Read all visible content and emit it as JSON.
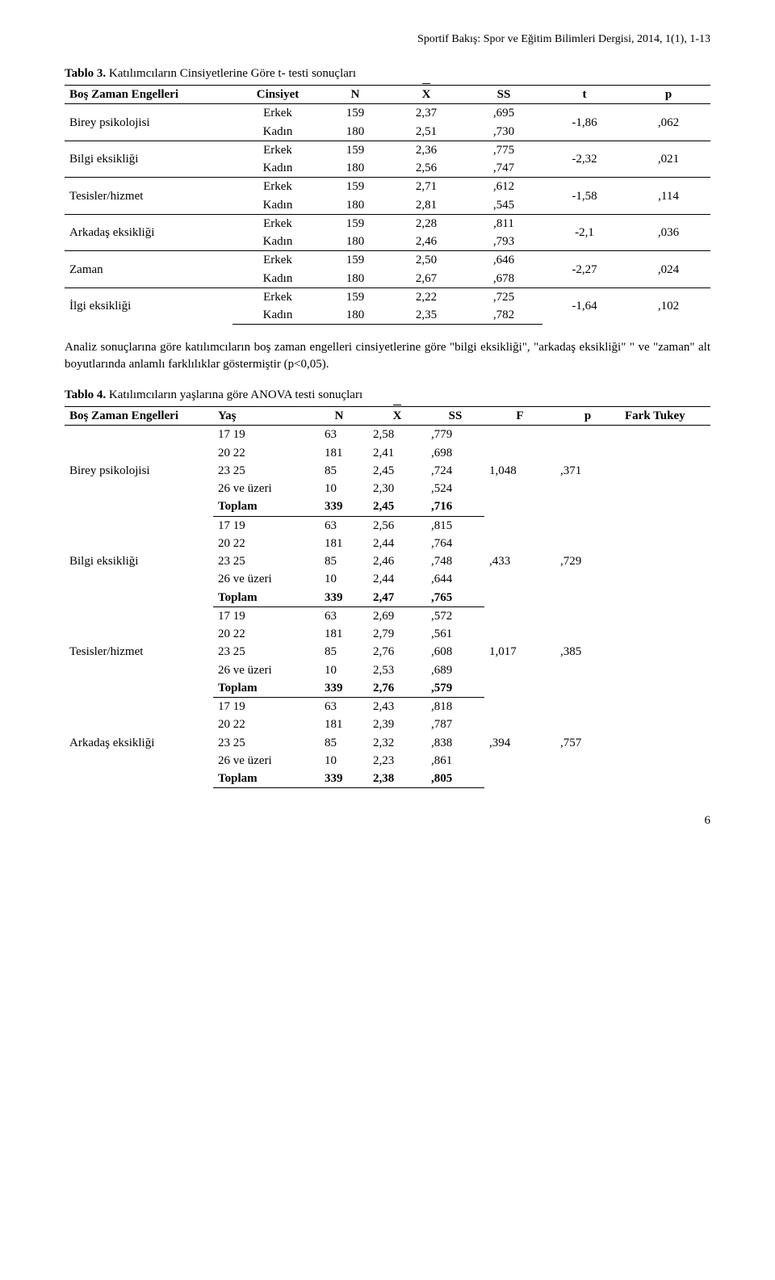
{
  "journal_header": "Sportif Bakış: Spor ve Eğitim Bilimleri Dergisi, 2014, 1(1), 1-13",
  "table3": {
    "caption_label": "Tablo 3.",
    "caption_text": " Katılımcıların Cinsiyetlerine Göre t- testi sonuçları",
    "headers": {
      "engel": "Boş Zaman Engelleri",
      "cinsiyet": "Cinsiyet",
      "n": "N",
      "x": "X",
      "ss": "SS",
      "t": "t",
      "p": "p"
    },
    "groups": [
      {
        "label": "Birey psikolojisi",
        "rows": [
          {
            "g": "Erkek",
            "n": "159",
            "x": "2,37",
            "ss": ",695"
          },
          {
            "g": "Kadın",
            "n": "180",
            "x": "2,51",
            "ss": ",730"
          }
        ],
        "t": "-1,86",
        "p": ",062"
      },
      {
        "label": "Bilgi eksikliği",
        "rows": [
          {
            "g": "Erkek",
            "n": "159",
            "x": "2,36",
            "ss": ",775"
          },
          {
            "g": "Kadın",
            "n": "180",
            "x": "2,56",
            "ss": ",747"
          }
        ],
        "t": "-2,32",
        "p": ",021"
      },
      {
        "label": "Tesisler/hizmet",
        "rows": [
          {
            "g": "Erkek",
            "n": "159",
            "x": "2,71",
            "ss": ",612"
          },
          {
            "g": "Kadın",
            "n": "180",
            "x": "2,81",
            "ss": ",545"
          }
        ],
        "t": "-1,58",
        "p": ",114"
      },
      {
        "label": "Arkadaş eksikliği",
        "rows": [
          {
            "g": "Erkek",
            "n": "159",
            "x": "2,28",
            "ss": ",811"
          },
          {
            "g": "Kadın",
            "n": "180",
            "x": "2,46",
            "ss": ",793"
          }
        ],
        "t": "-2,1",
        "p": ",036"
      },
      {
        "label": "Zaman",
        "rows": [
          {
            "g": "Erkek",
            "n": "159",
            "x": "2,50",
            "ss": ",646"
          },
          {
            "g": "Kadın",
            "n": "180",
            "x": "2,67",
            "ss": ",678"
          }
        ],
        "t": "-2,27",
        "p": ",024"
      },
      {
        "label": "İlgi eksikliği",
        "rows": [
          {
            "g": "Erkek",
            "n": "159",
            "x": "2,22",
            "ss": ",725"
          },
          {
            "g": "Kadın",
            "n": "180",
            "x": "2,35",
            "ss": ",782"
          }
        ],
        "t": "-1,64",
        "p": ",102"
      }
    ]
  },
  "analysis_para": "Analiz sonuçlarına göre katılımcıların boş zaman engelleri cinsiyetlerine göre \"bilgi eksikliği\", \"arkadaş eksikliği\" \" ve \"zaman\" alt boyutlarında anlamlı farklılıklar göstermiştir (p<0,05).",
  "table4": {
    "caption_label": "Tablo 4.",
    "caption_text": " Katılımcıların yaşlarına göre ANOVA testi sonuçları",
    "headers": {
      "engel": "Boş Zaman Engelleri",
      "yas": "Yaş",
      "n": "N",
      "x": "X",
      "ss": "SS",
      "f": "F",
      "p": "p",
      "tukey": "Fark Tukey"
    },
    "total_label": "Toplam",
    "groups": [
      {
        "label": "Birey psikolojisi",
        "f": "1,048",
        "p": ",371",
        "tukey": "",
        "rows": [
          {
            "age": "17 19",
            "n": "63",
            "x": "2,58",
            "ss": ",779"
          },
          {
            "age": "20 22",
            "n": "181",
            "x": "2,41",
            "ss": ",698"
          },
          {
            "age": "23 25",
            "n": "85",
            "x": "2,45",
            "ss": ",724"
          },
          {
            "age": "26 ve üzeri",
            "n": "10",
            "x": "2,30",
            "ss": ",524"
          }
        ],
        "total": {
          "n": "339",
          "x": "2,45",
          "ss": ",716"
        }
      },
      {
        "label": "Bilgi eksikliği",
        "f": ",433",
        "p": ",729",
        "tukey": "",
        "rows": [
          {
            "age": "17 19",
            "n": "63",
            "x": "2,56",
            "ss": ",815"
          },
          {
            "age": "20 22",
            "n": "181",
            "x": "2,44",
            "ss": ",764"
          },
          {
            "age": "23 25",
            "n": "85",
            "x": "2,46",
            "ss": ",748"
          },
          {
            "age": "26 ve üzeri",
            "n": "10",
            "x": "2,44",
            "ss": ",644"
          }
        ],
        "total": {
          "n": "339",
          "x": "2,47",
          "ss": ",765"
        }
      },
      {
        "label": "Tesisler/hizmet",
        "f": "1,017",
        "p": ",385",
        "tukey": "",
        "rows": [
          {
            "age": "17 19",
            "n": "63",
            "x": "2,69",
            "ss": ",572"
          },
          {
            "age": "20 22",
            "n": "181",
            "x": "2,79",
            "ss": ",561"
          },
          {
            "age": "23 25",
            "n": "85",
            "x": "2,76",
            "ss": ",608"
          },
          {
            "age": "26 ve üzeri",
            "n": "10",
            "x": "2,53",
            "ss": ",689"
          }
        ],
        "total": {
          "n": "339",
          "x": "2,76",
          "ss": ",579"
        }
      },
      {
        "label": "Arkadaş eksikliği",
        "f": ",394",
        "p": ",757",
        "tukey": "",
        "rows": [
          {
            "age": "17 19",
            "n": "63",
            "x": "2,43",
            "ss": ",818"
          },
          {
            "age": "20 22",
            "n": "181",
            "x": "2,39",
            "ss": ",787"
          },
          {
            "age": "23 25",
            "n": "85",
            "x": "2,32",
            "ss": ",838"
          },
          {
            "age": "26 ve üzeri",
            "n": "10",
            "x": "2,23",
            "ss": ",861"
          }
        ],
        "total": {
          "n": "339",
          "x": "2,38",
          "ss": ",805"
        }
      }
    ]
  },
  "page_number": "6"
}
